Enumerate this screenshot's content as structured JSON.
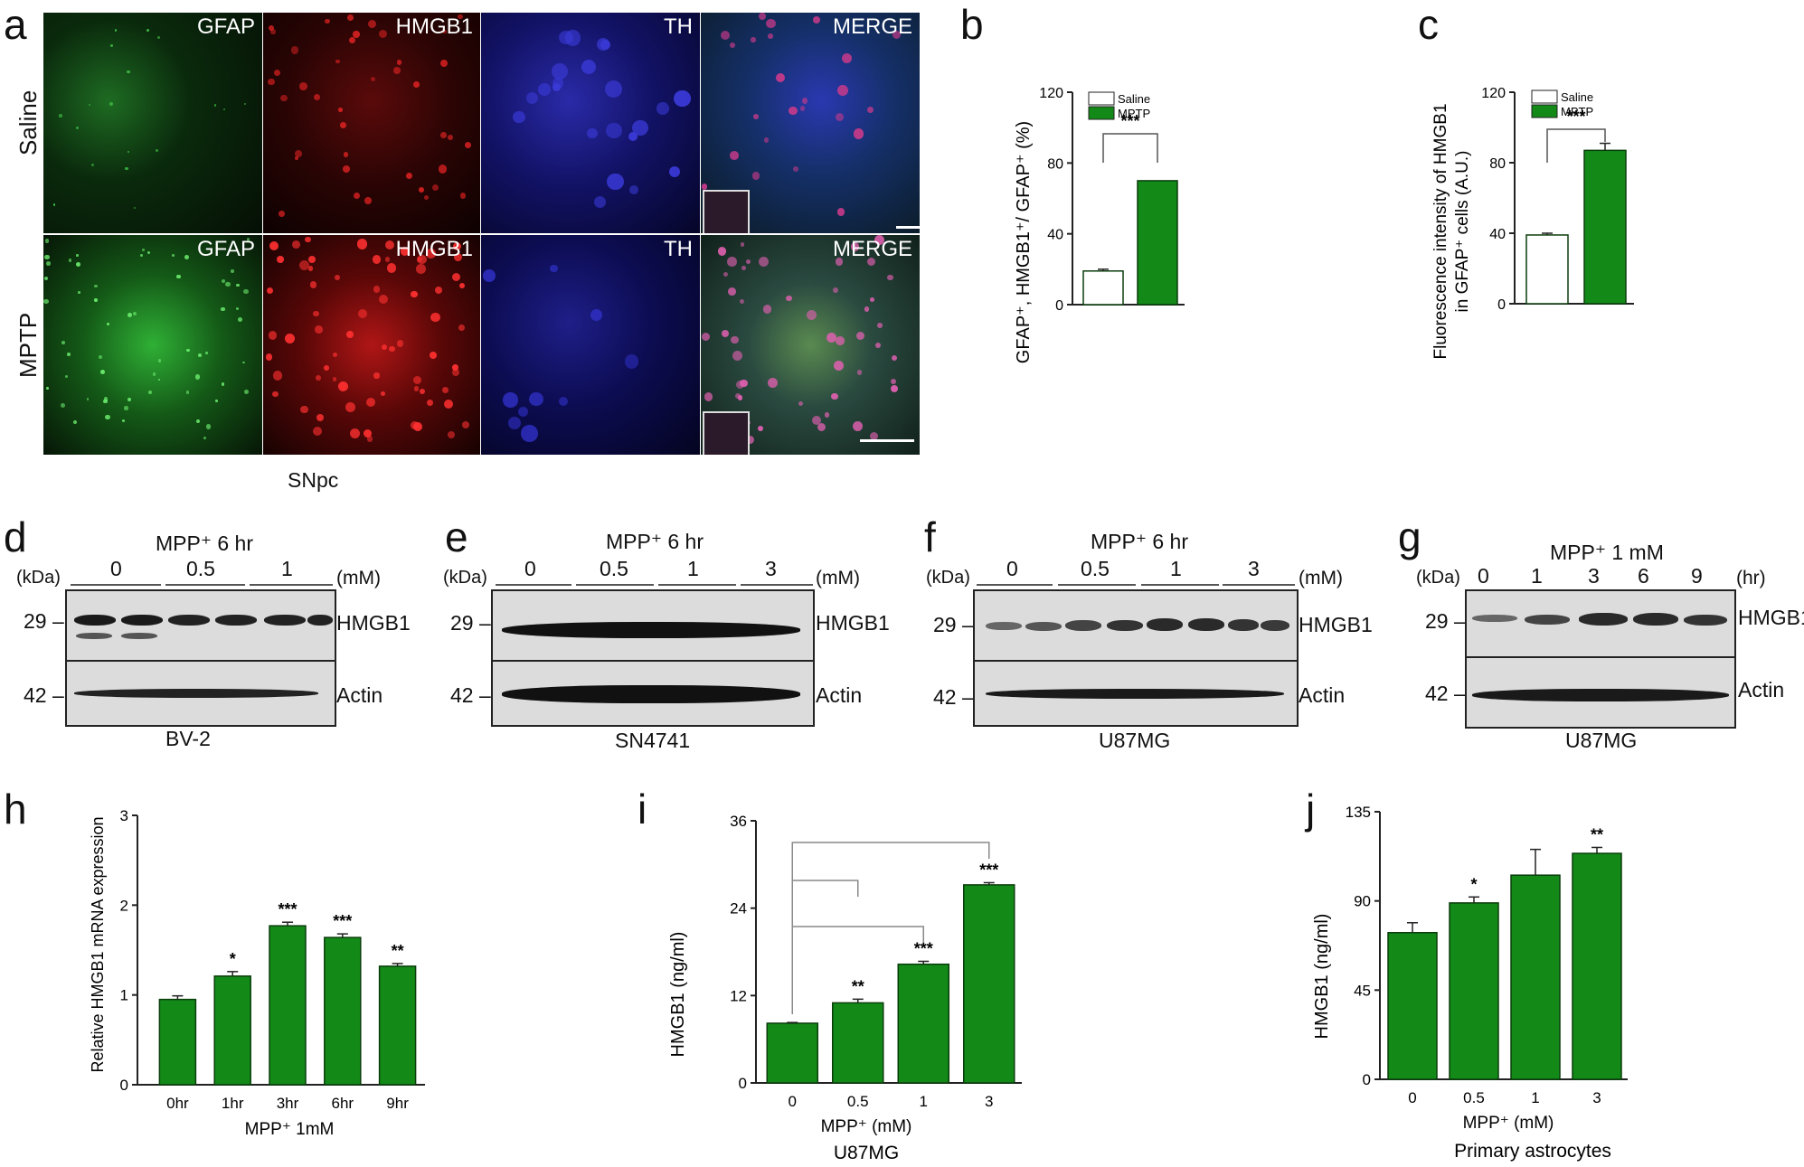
{
  "panel_letters": [
    "a",
    "b",
    "c",
    "d",
    "e",
    "f",
    "g",
    "h",
    "i",
    "j"
  ],
  "panel_a": {
    "channels": [
      "GFAP",
      "HMGB1",
      "TH",
      "MERGE"
    ],
    "rows": [
      "Saline",
      "MPTP"
    ],
    "region": "SNpc"
  },
  "blots": {
    "d": {
      "header": "MPP⁺ 6 hr",
      "kda": "(kDa)",
      "unit": "(mM)",
      "doses": [
        "0",
        "0.5",
        "1"
      ],
      "markers": [
        "29 –",
        "42 –"
      ],
      "bands": [
        "HMGB1",
        "Actin"
      ],
      "cell_line": "BV-2"
    },
    "e": {
      "header": "MPP⁺ 6 hr",
      "kda": "(kDa)",
      "unit": "(mM)",
      "doses": [
        "0",
        "0.5",
        "1",
        "3"
      ],
      "markers": [
        "29 –",
        "42 –"
      ],
      "bands": [
        "HMGB1",
        "Actin"
      ],
      "cell_line": "SN4741"
    },
    "f": {
      "header": "MPP⁺ 6 hr",
      "kda": "(kDa)",
      "unit": "(mM)",
      "doses": [
        "0",
        "0.5",
        "1",
        "3"
      ],
      "markers": [
        "29 –",
        "42 –"
      ],
      "bands": [
        "HMGB1",
        "Actin"
      ],
      "cell_line": "U87MG"
    },
    "g": {
      "header": "MPP⁺ 1 mM",
      "kda": "(kDa)",
      "unit": "(hr)",
      "doses": [
        "0",
        "1",
        "3",
        "6",
        "9"
      ],
      "markers": [
        "29 –",
        "42 –"
      ],
      "bands": [
        "HMGB1",
        "Actin"
      ],
      "cell_line": "U87MG"
    }
  },
  "colors": {
    "bar": "#138a17",
    "bar_edge": "#0a3d0c",
    "axis": "#222222"
  },
  "chart_data": [
    {
      "id": "b",
      "type": "bar",
      "categories": [
        "Saline",
        "MPTP"
      ],
      "values": [
        19,
        70
      ],
      "errors": [
        1,
        0
      ],
      "ylabel": "GFAP⁺, HMGB1⁺/ GFAP⁺ (%)",
      "yticks": [
        0,
        40,
        80,
        120
      ],
      "ylim": [
        0,
        120
      ],
      "legend": [
        "Saline",
        "MPTP"
      ],
      "legend_position": "top-left",
      "bar_colors": [
        "#ffffff",
        "#138a17"
      ],
      "significance": [
        {
          "pair": [
            "Saline",
            "MPTP"
          ],
          "label": "***"
        }
      ]
    },
    {
      "id": "c",
      "type": "bar",
      "categories": [
        "Saline",
        "MPTP"
      ],
      "values": [
        39,
        87
      ],
      "errors": [
        1,
        4
      ],
      "ylabel": "Fluorescence intensity of HMGB1 in GFAP⁺ cells (A.U.)",
      "ylabel_lines": [
        "Fluorescence intensity of HMGB1",
        "in GFAP⁺ cells (A.U.)"
      ],
      "yticks": [
        0,
        40,
        80,
        120
      ],
      "ylim": [
        0,
        120
      ],
      "legend": [
        "Saline",
        "MPTP"
      ],
      "legend_position": "top-left",
      "bar_colors": [
        "#ffffff",
        "#138a17"
      ],
      "significance": [
        {
          "pair": [
            "Saline",
            "MPTP"
          ],
          "label": "***"
        }
      ]
    },
    {
      "id": "h",
      "type": "bar",
      "categories": [
        "0hr",
        "1hr",
        "3hr",
        "6hr",
        "9hr"
      ],
      "values": [
        0.95,
        1.21,
        1.77,
        1.64,
        1.32
      ],
      "errors": [
        0.04,
        0.05,
        0.04,
        0.04,
        0.03
      ],
      "stars": [
        "",
        "*",
        "***",
        "***",
        "**"
      ],
      "ylabel": "Relative HMGB1 mRNA expression",
      "xlabel": "MPP⁺ 1mM",
      "yticks": [
        0,
        1,
        2,
        3
      ],
      "ylim": [
        0,
        3
      ]
    },
    {
      "id": "i",
      "type": "bar",
      "categories": [
        "0",
        "0.5",
        "1",
        "3"
      ],
      "values": [
        8.2,
        11.0,
        16.3,
        27.2
      ],
      "errors": [
        0.1,
        0.5,
        0.4,
        0.3
      ],
      "stars": [
        "",
        "**",
        "***",
        "***"
      ],
      "ylabel": "HMGB1 (ng/ml)",
      "xlabel": "MPP⁺ (mM)",
      "caption": "U87MG",
      "yticks": [
        0,
        12,
        24,
        36
      ],
      "ylim": [
        0,
        36
      ],
      "brackets": [
        [
          0,
          1
        ],
        [
          0,
          2
        ],
        [
          0,
          3
        ]
      ]
    },
    {
      "id": "j",
      "type": "bar",
      "categories": [
        "0",
        "0.5",
        "1",
        "3"
      ],
      "values": [
        74,
        89,
        103,
        114
      ],
      "errors": [
        5,
        3,
        13,
        3
      ],
      "stars": [
        "",
        "*",
        "",
        "**"
      ],
      "ylabel": "HMGB1 (ng/ml)",
      "xlabel": "MPP⁺ (mM)",
      "caption": "Primary astrocytes",
      "yticks": [
        0,
        45,
        90,
        135
      ],
      "ylim": [
        0,
        135
      ]
    }
  ]
}
